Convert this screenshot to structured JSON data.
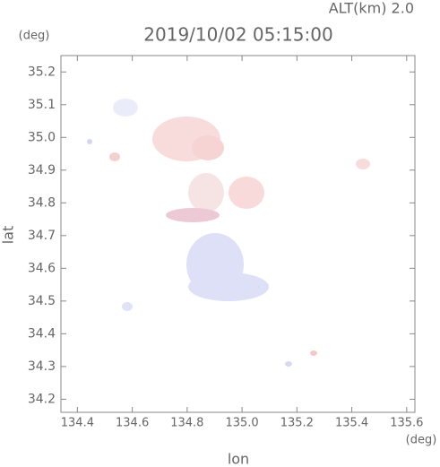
{
  "chart_data": {
    "type": "map",
    "title": "2019/10/02 05:15:00",
    "subtitle": "ALT(km) 2.0",
    "x_label": "lon",
    "y_label": "lat",
    "x_unit": "(deg)",
    "y_unit": "(deg)",
    "xlim": [
      134.34,
      135.63
    ],
    "ylim": [
      34.16,
      35.25
    ],
    "xticks": [
      134.4,
      134.6,
      134.8,
      {
        "value": 135,
        "label": "135.0"
      },
      135.2,
      135.4,
      135.6
    ],
    "yticks": [
      34.2,
      34.3,
      34.4,
      34.5,
      34.6,
      34.7,
      34.8,
      34.9,
      {
        "value": 35,
        "label": "35.0"
      },
      35.1,
      35.2
    ]
  }
}
